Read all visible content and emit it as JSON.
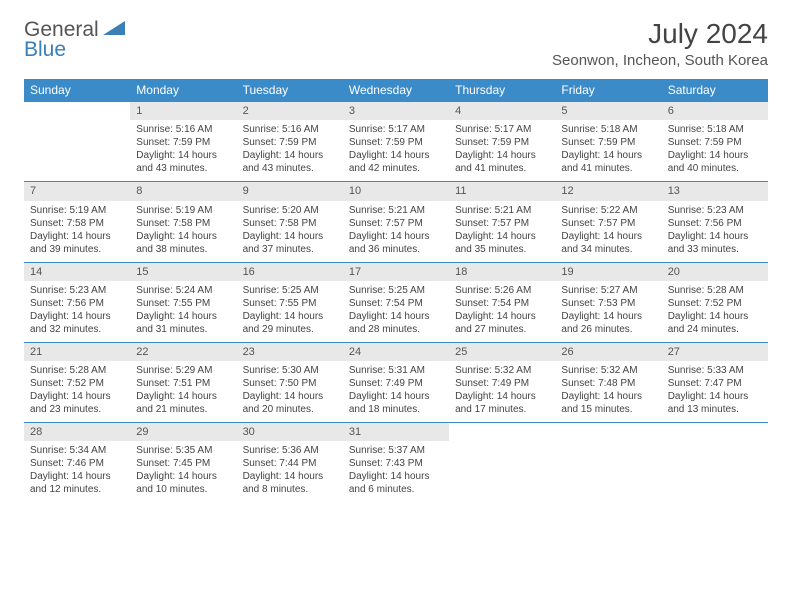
{
  "logo": {
    "word1": "General",
    "word2": "Blue"
  },
  "title": "July 2024",
  "location": "Seonwon, Incheon, South Korea",
  "colors": {
    "header_bg": "#3b8bc9",
    "daynum_bg": "#e8e8e8",
    "line": "#3b8bc9"
  },
  "weekdays": [
    "Sunday",
    "Monday",
    "Tuesday",
    "Wednesday",
    "Thursday",
    "Friday",
    "Saturday"
  ],
  "weeks": [
    {
      "days": [
        null,
        {
          "n": "1",
          "sr": "Sunrise: 5:16 AM",
          "ss": "Sunset: 7:59 PM",
          "d1": "Daylight: 14 hours",
          "d2": "and 43 minutes."
        },
        {
          "n": "2",
          "sr": "Sunrise: 5:16 AM",
          "ss": "Sunset: 7:59 PM",
          "d1": "Daylight: 14 hours",
          "d2": "and 43 minutes."
        },
        {
          "n": "3",
          "sr": "Sunrise: 5:17 AM",
          "ss": "Sunset: 7:59 PM",
          "d1": "Daylight: 14 hours",
          "d2": "and 42 minutes."
        },
        {
          "n": "4",
          "sr": "Sunrise: 5:17 AM",
          "ss": "Sunset: 7:59 PM",
          "d1": "Daylight: 14 hours",
          "d2": "and 41 minutes."
        },
        {
          "n": "5",
          "sr": "Sunrise: 5:18 AM",
          "ss": "Sunset: 7:59 PM",
          "d1": "Daylight: 14 hours",
          "d2": "and 41 minutes."
        },
        {
          "n": "6",
          "sr": "Sunrise: 5:18 AM",
          "ss": "Sunset: 7:59 PM",
          "d1": "Daylight: 14 hours",
          "d2": "and 40 minutes."
        }
      ]
    },
    {
      "days": [
        {
          "n": "7",
          "sr": "Sunrise: 5:19 AM",
          "ss": "Sunset: 7:58 PM",
          "d1": "Daylight: 14 hours",
          "d2": "and 39 minutes."
        },
        {
          "n": "8",
          "sr": "Sunrise: 5:19 AM",
          "ss": "Sunset: 7:58 PM",
          "d1": "Daylight: 14 hours",
          "d2": "and 38 minutes."
        },
        {
          "n": "9",
          "sr": "Sunrise: 5:20 AM",
          "ss": "Sunset: 7:58 PM",
          "d1": "Daylight: 14 hours",
          "d2": "and 37 minutes."
        },
        {
          "n": "10",
          "sr": "Sunrise: 5:21 AM",
          "ss": "Sunset: 7:57 PM",
          "d1": "Daylight: 14 hours",
          "d2": "and 36 minutes."
        },
        {
          "n": "11",
          "sr": "Sunrise: 5:21 AM",
          "ss": "Sunset: 7:57 PM",
          "d1": "Daylight: 14 hours",
          "d2": "and 35 minutes."
        },
        {
          "n": "12",
          "sr": "Sunrise: 5:22 AM",
          "ss": "Sunset: 7:57 PM",
          "d1": "Daylight: 14 hours",
          "d2": "and 34 minutes."
        },
        {
          "n": "13",
          "sr": "Sunrise: 5:23 AM",
          "ss": "Sunset: 7:56 PM",
          "d1": "Daylight: 14 hours",
          "d2": "and 33 minutes."
        }
      ]
    },
    {
      "days": [
        {
          "n": "14",
          "sr": "Sunrise: 5:23 AM",
          "ss": "Sunset: 7:56 PM",
          "d1": "Daylight: 14 hours",
          "d2": "and 32 minutes."
        },
        {
          "n": "15",
          "sr": "Sunrise: 5:24 AM",
          "ss": "Sunset: 7:55 PM",
          "d1": "Daylight: 14 hours",
          "d2": "and 31 minutes."
        },
        {
          "n": "16",
          "sr": "Sunrise: 5:25 AM",
          "ss": "Sunset: 7:55 PM",
          "d1": "Daylight: 14 hours",
          "d2": "and 29 minutes."
        },
        {
          "n": "17",
          "sr": "Sunrise: 5:25 AM",
          "ss": "Sunset: 7:54 PM",
          "d1": "Daylight: 14 hours",
          "d2": "and 28 minutes."
        },
        {
          "n": "18",
          "sr": "Sunrise: 5:26 AM",
          "ss": "Sunset: 7:54 PM",
          "d1": "Daylight: 14 hours",
          "d2": "and 27 minutes."
        },
        {
          "n": "19",
          "sr": "Sunrise: 5:27 AM",
          "ss": "Sunset: 7:53 PM",
          "d1": "Daylight: 14 hours",
          "d2": "and 26 minutes."
        },
        {
          "n": "20",
          "sr": "Sunrise: 5:28 AM",
          "ss": "Sunset: 7:52 PM",
          "d1": "Daylight: 14 hours",
          "d2": "and 24 minutes."
        }
      ]
    },
    {
      "days": [
        {
          "n": "21",
          "sr": "Sunrise: 5:28 AM",
          "ss": "Sunset: 7:52 PM",
          "d1": "Daylight: 14 hours",
          "d2": "and 23 minutes."
        },
        {
          "n": "22",
          "sr": "Sunrise: 5:29 AM",
          "ss": "Sunset: 7:51 PM",
          "d1": "Daylight: 14 hours",
          "d2": "and 21 minutes."
        },
        {
          "n": "23",
          "sr": "Sunrise: 5:30 AM",
          "ss": "Sunset: 7:50 PM",
          "d1": "Daylight: 14 hours",
          "d2": "and 20 minutes."
        },
        {
          "n": "24",
          "sr": "Sunrise: 5:31 AM",
          "ss": "Sunset: 7:49 PM",
          "d1": "Daylight: 14 hours",
          "d2": "and 18 minutes."
        },
        {
          "n": "25",
          "sr": "Sunrise: 5:32 AM",
          "ss": "Sunset: 7:49 PM",
          "d1": "Daylight: 14 hours",
          "d2": "and 17 minutes."
        },
        {
          "n": "26",
          "sr": "Sunrise: 5:32 AM",
          "ss": "Sunset: 7:48 PM",
          "d1": "Daylight: 14 hours",
          "d2": "and 15 minutes."
        },
        {
          "n": "27",
          "sr": "Sunrise: 5:33 AM",
          "ss": "Sunset: 7:47 PM",
          "d1": "Daylight: 14 hours",
          "d2": "and 13 minutes."
        }
      ]
    },
    {
      "days": [
        {
          "n": "28",
          "sr": "Sunrise: 5:34 AM",
          "ss": "Sunset: 7:46 PM",
          "d1": "Daylight: 14 hours",
          "d2": "and 12 minutes."
        },
        {
          "n": "29",
          "sr": "Sunrise: 5:35 AM",
          "ss": "Sunset: 7:45 PM",
          "d1": "Daylight: 14 hours",
          "d2": "and 10 minutes."
        },
        {
          "n": "30",
          "sr": "Sunrise: 5:36 AM",
          "ss": "Sunset: 7:44 PM",
          "d1": "Daylight: 14 hours",
          "d2": "and 8 minutes."
        },
        {
          "n": "31",
          "sr": "Sunrise: 5:37 AM",
          "ss": "Sunset: 7:43 PM",
          "d1": "Daylight: 14 hours",
          "d2": "and 6 minutes."
        },
        null,
        null,
        null
      ]
    }
  ]
}
